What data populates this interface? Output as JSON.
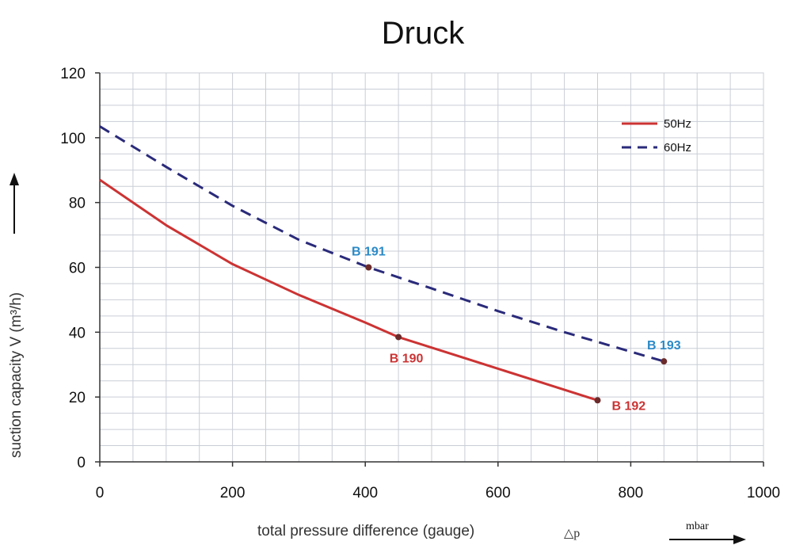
{
  "chart_data": {
    "type": "line",
    "title": "Druck",
    "xlabel": "total pressure difference (gauge)",
    "xlabel_symbol": "△p",
    "x_unit": "mbar",
    "ylabel": "suction capacity V (m³/h)",
    "xlim": [
      0,
      1000
    ],
    "ylim": [
      0,
      120
    ],
    "x_ticks": [
      "0",
      "200",
      "400",
      "600",
      "800",
      "1000"
    ],
    "y_ticks": [
      "0",
      "20",
      "40",
      "60",
      "80",
      "100",
      "120"
    ],
    "grid": true,
    "legend_position": "top-right",
    "series": [
      {
        "name": "50Hz",
        "color": "#cc3333",
        "style": "solid",
        "points": [
          [
            0,
            87
          ],
          [
            100,
            73
          ],
          [
            200,
            61
          ],
          [
            300,
            51.5
          ],
          [
            400,
            43
          ],
          [
            450,
            38.5
          ],
          [
            550,
            32
          ],
          [
            650,
            25.5
          ],
          [
            750,
            19
          ]
        ]
      },
      {
        "name": "60Hz",
        "color": "#2a2a7a",
        "style": "dashed",
        "points": [
          [
            0,
            103.5
          ],
          [
            100,
            91
          ],
          [
            200,
            79
          ],
          [
            300,
            68.5
          ],
          [
            405,
            60
          ],
          [
            500,
            53.5
          ],
          [
            600,
            46.5
          ],
          [
            700,
            40
          ],
          [
            850,
            31
          ]
        ]
      }
    ],
    "annotations": [
      {
        "text": "B 191",
        "x": 405,
        "y": 60,
        "color": "#2b8ac7",
        "anchor": "above"
      },
      {
        "text": "B 190",
        "x": 450,
        "y": 38.5,
        "color": "#cc3333",
        "anchor": "below"
      },
      {
        "text": "B 193",
        "x": 850,
        "y": 31,
        "color": "#2b8ac7",
        "anchor": "above"
      },
      {
        "text": "B 192",
        "x": 750,
        "y": 19,
        "color": "#cc3333",
        "anchor": "right"
      }
    ]
  }
}
